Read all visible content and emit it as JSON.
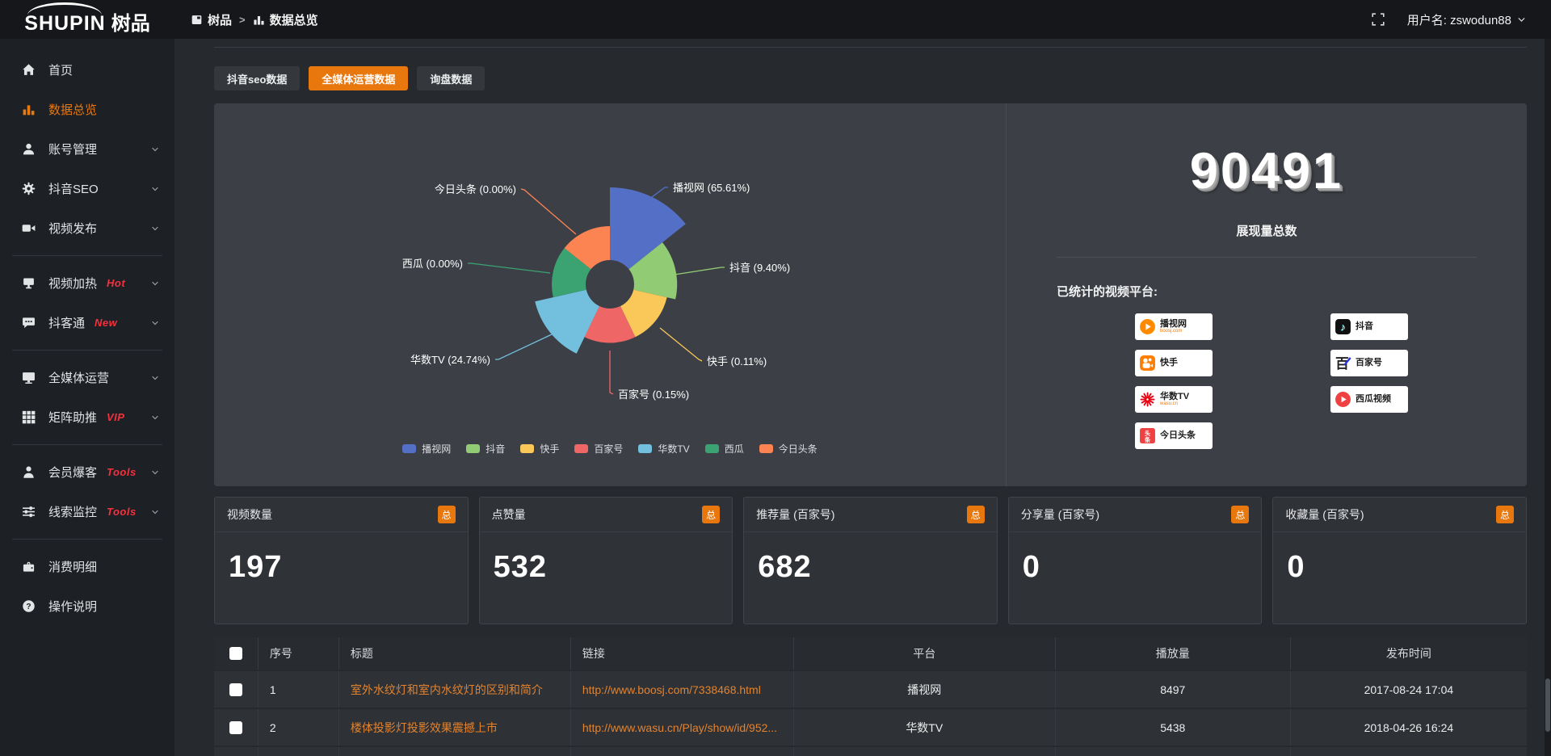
{
  "header": {
    "logo_primary": "SHUPIN",
    "logo_secondary": "树品",
    "breadcrumb": [
      {
        "label": "树品"
      },
      {
        "label": "数据总览"
      }
    ],
    "breadcrumb_separator": ">",
    "username": "用户名: zswodun88"
  },
  "sidebar": {
    "items": [
      {
        "label": "首页",
        "icon": "home",
        "chevron": false,
        "active": false
      },
      {
        "label": "数据总览",
        "icon": "bars",
        "chevron": false,
        "active": true
      },
      {
        "label": "账号管理",
        "icon": "user",
        "chevron": true,
        "active": false
      },
      {
        "label": "抖音SEO",
        "icon": "gear",
        "chevron": true,
        "active": false
      },
      {
        "label": "视频发布",
        "icon": "video",
        "chevron": true,
        "active": false
      },
      {
        "divider": true
      },
      {
        "label": "视频加热",
        "icon": "heat",
        "badge": "Hot",
        "chevron": true,
        "active": false
      },
      {
        "label": "抖客通",
        "icon": "chat",
        "badge": "New",
        "chevron": true,
        "active": false
      },
      {
        "divider": true
      },
      {
        "label": "全媒体运营",
        "icon": "monitor",
        "chevron": true,
        "active": false
      },
      {
        "label": "矩阵助推",
        "icon": "grid",
        "badge": "VIP",
        "chevron": true,
        "active": false
      },
      {
        "divider": true
      },
      {
        "label": "会员爆客",
        "icon": "user2",
        "badge": "Tools",
        "chevron": true,
        "active": false
      },
      {
        "label": "线索监控",
        "icon": "sliders",
        "badge": "Tools",
        "chevron": true,
        "active": false
      },
      {
        "divider": true
      },
      {
        "label": "消费明细",
        "icon": "wallet",
        "chevron": false,
        "active": false
      },
      {
        "label": "操作说明",
        "icon": "question",
        "chevron": false,
        "active": false
      }
    ]
  },
  "tabs": [
    {
      "label": "抖音seo数据",
      "active": false
    },
    {
      "label": "全媒体运营数据",
      "active": true
    },
    {
      "label": "询盘数据",
      "active": false
    }
  ],
  "chart_data": {
    "type": "pie",
    "subtype": "rose",
    "legend_position": "bottom",
    "series": [
      {
        "name": "播视网",
        "percent": 65.61,
        "color": "#5470c6"
      },
      {
        "name": "抖音",
        "percent": 9.4,
        "color": "#91cc75"
      },
      {
        "name": "快手",
        "percent": 0.11,
        "color": "#fac858"
      },
      {
        "name": "百家号",
        "percent": 0.15,
        "color": "#ee6666"
      },
      {
        "name": "华数TV",
        "percent": 24.74,
        "color": "#73c0de"
      },
      {
        "name": "西瓜",
        "percent": 0.0,
        "color": "#3ba272"
      },
      {
        "name": "今日头条",
        "percent": 0.0,
        "color": "#fc8452"
      }
    ]
  },
  "summary": {
    "total_value": "90491",
    "total_label": "展现量总数",
    "platforms_label": "已统计的视频平台:",
    "platforms": [
      {
        "name": "播视网",
        "sub": "boosj.com",
        "logo": "boosj"
      },
      {
        "name": "抖音",
        "sub": "",
        "logo": "douyin"
      },
      {
        "name": "快手",
        "sub": "",
        "logo": "kuaishou"
      },
      {
        "name": "百家号",
        "sub": "",
        "logo": "baijiahao"
      },
      {
        "name": "华数TV",
        "sub": "wasu.cn",
        "logo": "wasu"
      },
      {
        "name": "西瓜视频",
        "sub": "",
        "logo": "xigua"
      },
      {
        "name": "今日头条",
        "sub": "",
        "logo": "toutiao"
      }
    ]
  },
  "stat_cards": [
    {
      "title": "视频数量",
      "badge": "总",
      "value": "197"
    },
    {
      "title": "点赞量",
      "badge": "总",
      "value": "532"
    },
    {
      "title": "推荐量 (百家号)",
      "badge": "总",
      "value": "682"
    },
    {
      "title": "分享量 (百家号)",
      "badge": "总",
      "value": "0"
    },
    {
      "title": "收藏量 (百家号)",
      "badge": "总",
      "value": "0"
    }
  ],
  "table": {
    "headers": [
      "序号",
      "标题",
      "链接",
      "平台",
      "播放量",
      "发布时间"
    ],
    "rows": [
      [
        "1",
        "室外水纹灯和室内水纹灯的区别和简介",
        "http://www.boosj.com/7338468.html",
        "播视网",
        "8497",
        "2017-08-24 17:04"
      ],
      [
        "2",
        "楼体投影灯投影效果震撼上市",
        "http://www.wasu.cn/Play/show/id/952...",
        "华数TV",
        "5438",
        "2018-04-26 16:24"
      ],
      [
        "",
        "",
        "",
        "",
        "",
        ""
      ]
    ]
  }
}
